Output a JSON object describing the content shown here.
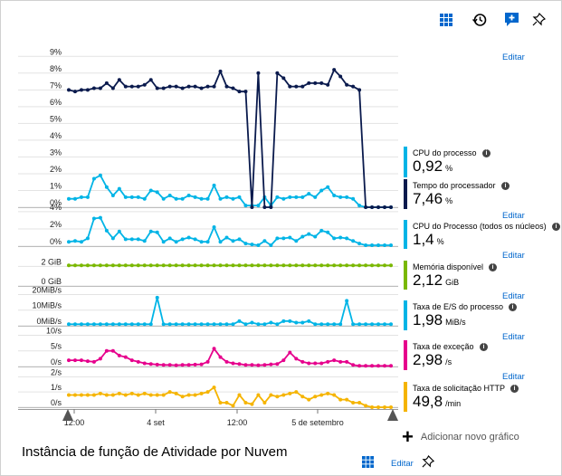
{
  "header": {
    "icons": [
      "grid-icon",
      "history-icon",
      "feedback-icon",
      "pin-icon"
    ]
  },
  "edit_label": "Editar",
  "panels": [
    {
      "name": "CPU do processo",
      "value": "0,92",
      "unit": "%",
      "color": "#00b4e6"
    },
    {
      "name": "Tempo do processador",
      "value": "7,46",
      "unit": "%",
      "color": "#0a1a4d"
    },
    {
      "name": "CPU do Processo (todos os núcleos)",
      "value": "1,4",
      "unit": "%",
      "color": "#00b4e6"
    },
    {
      "name": "Memória disponível",
      "value": "2,12",
      "unit": "GiB",
      "color": "#7ab800"
    },
    {
      "name": "Taxa de E/S do processo",
      "value": "1,98",
      "unit": "MiB/s",
      "color": "#00b4e6"
    },
    {
      "name": "Taxa de exceção",
      "value": "2,98",
      "unit": "/s",
      "color": "#e6008c"
    },
    {
      "name": "Taxa de solicitação HTTP",
      "value": "49,8",
      "unit": "/min",
      "color": "#f5b400"
    }
  ],
  "footer": {
    "title": "Instância de função de Atividade por Nuvem",
    "edit_label": "Editar",
    "add_chart_label": "Adicionar novo gráfico"
  },
  "chart_data": [
    {
      "type": "line",
      "title": "",
      "ytick_labels": [
        "0%",
        "1%",
        "2%",
        "3%",
        "4%",
        "5%",
        "6%",
        "7%",
        "8%",
        "9%"
      ],
      "ylim": [
        0,
        9.5
      ],
      "series": [
        {
          "name": "CPU do processo",
          "color": "#00b4e6",
          "values": [
            0.5,
            0.5,
            0.6,
            0.6,
            1.7,
            1.9,
            1.2,
            0.7,
            1.1,
            0.6,
            0.6,
            0.6,
            0.5,
            1.0,
            0.9,
            0.5,
            0.7,
            0.5,
            0.5,
            0.7,
            0.6,
            0.5,
            0.5,
            1.3,
            0.5,
            0.6,
            0.5,
            0.6,
            0.1,
            0.1,
            0.1,
            0.6,
            0.1,
            0.6,
            0.5,
            0.6,
            0.6,
            0.6,
            0.8,
            0.6,
            1.0,
            1.2,
            0.7,
            0.6,
            0.6,
            0.5,
            0.1,
            0.0,
            0.0,
            0.0,
            0.0,
            0.0
          ]
        },
        {
          "name": "Tempo do processador",
          "color": "#0a1a4d",
          "values": [
            7.0,
            6.9,
            7.0,
            7.0,
            7.1,
            7.1,
            7.4,
            7.1,
            7.6,
            7.2,
            7.2,
            7.2,
            7.3,
            7.6,
            7.1,
            7.1,
            7.2,
            7.2,
            7.1,
            7.2,
            7.2,
            7.1,
            7.2,
            7.2,
            8.1,
            7.2,
            7.1,
            6.9,
            6.9,
            0.0,
            8.0,
            0.0,
            0.0,
            8.0,
            7.7,
            7.2,
            7.2,
            7.2,
            7.4,
            7.4,
            7.4,
            7.3,
            8.2,
            7.8,
            7.3,
            7.2,
            7.0,
            0.0,
            0.0,
            0.0,
            0.0,
            0.0
          ]
        }
      ]
    },
    {
      "type": "line",
      "title": "",
      "ytick_labels": [
        "0%",
        "2%",
        "4%"
      ],
      "ylim": [
        0,
        4.2
      ],
      "series": [
        {
          "name": "CPU do Processo (todos os núcleos)",
          "color": "#00b4e6",
          "values": [
            0.5,
            0.6,
            0.5,
            0.9,
            3.2,
            3.3,
            1.8,
            0.9,
            1.7,
            0.8,
            0.8,
            0.8,
            0.6,
            1.7,
            1.6,
            0.5,
            0.9,
            0.5,
            0.8,
            1.0,
            0.8,
            0.5,
            0.5,
            2.2,
            0.5,
            1.0,
            0.6,
            0.8,
            0.3,
            0.2,
            0.1,
            0.6,
            0.1,
            0.9,
            0.9,
            1.0,
            0.6,
            1.1,
            1.4,
            1.1,
            1.8,
            1.6,
            0.9,
            1.0,
            0.9,
            0.6,
            0.3,
            0.1,
            0.1,
            0.1,
            0.1,
            0.1
          ]
        }
      ]
    },
    {
      "type": "line",
      "title": "",
      "ytick_labels": [
        "0 GiB",
        "2 GiB"
      ],
      "ylim": [
        0,
        2.4
      ],
      "series": [
        {
          "name": "Memória disponível",
          "color": "#7ab800",
          "values": [
            2.1,
            2.1,
            2.1,
            2.1,
            2.1,
            2.1,
            2.1,
            2.1,
            2.1,
            2.1,
            2.1,
            2.1,
            2.1,
            2.1,
            2.1,
            2.1,
            2.1,
            2.1,
            2.1,
            2.1,
            2.1,
            2.1,
            2.1,
            2.1,
            2.1,
            2.1,
            2.1,
            2.1,
            2.1,
            2.1,
            2.1,
            2.1,
            2.1,
            2.1,
            2.1,
            2.1,
            2.1,
            2.1,
            2.1,
            2.1,
            2.1,
            2.1,
            2.1,
            2.1,
            2.1,
            2.1,
            2.1,
            2.1,
            2.1,
            2.1,
            2.1,
            2.1
          ]
        }
      ]
    },
    {
      "type": "line",
      "title": "",
      "ytick_labels": [
        "0MiB/s",
        "10MiB/s",
        "20MiB/s"
      ],
      "ylim": [
        0,
        22
      ],
      "series": [
        {
          "name": "Taxa de E/S do processo",
          "color": "#00b4e6",
          "values": [
            1,
            1,
            1,
            1,
            1,
            1,
            1,
            1,
            1,
            1,
            1,
            1,
            1,
            1,
            18,
            1,
            1,
            1,
            1,
            1,
            1,
            1,
            1,
            1,
            1,
            1,
            1,
            3,
            1,
            2,
            1,
            1,
            2,
            1,
            3,
            3,
            2,
            2,
            3,
            1,
            1,
            1,
            1,
            1,
            16,
            1,
            1,
            1,
            1,
            1,
            1,
            1
          ]
        }
      ]
    },
    {
      "type": "line",
      "title": "",
      "ytick_labels": [
        "0/s",
        "5/s",
        "10/s"
      ],
      "ylim": [
        0,
        11
      ],
      "series": [
        {
          "name": "Taxa de exceção",
          "color": "#e6008c",
          "values": [
            2,
            2,
            2,
            1.7,
            1.5,
            2.5,
            5,
            5,
            3.5,
            3,
            2,
            1.5,
            1,
            0.8,
            0.6,
            0.5,
            0.5,
            0.4,
            0.5,
            0.5,
            0.6,
            0.7,
            1.5,
            5.7,
            3,
            1.5,
            1,
            0.8,
            0.5,
            0.5,
            0.4,
            0.5,
            0.7,
            0.8,
            2,
            4.5,
            2.5,
            1.5,
            1,
            1,
            1,
            1.5,
            2,
            1.5,
            1.5,
            0.5,
            0.2,
            0.2,
            0.2,
            0.2,
            0.2,
            0.2
          ]
        }
      ]
    },
    {
      "type": "line",
      "title": "",
      "ytick_labels": [
        "0/s",
        "1/s",
        "2/s"
      ],
      "ylim": [
        0,
        2.2
      ],
      "series": [
        {
          "name": "Taxa de solicitação HTTP",
          "color": "#f5b400",
          "values": [
            0.8,
            0.8,
            0.8,
            0.8,
            0.8,
            0.9,
            0.8,
            0.8,
            0.9,
            0.8,
            0.9,
            0.8,
            0.9,
            0.8,
            0.8,
            0.8,
            1.0,
            0.9,
            0.7,
            0.8,
            0.8,
            0.9,
            1.0,
            1.3,
            0.3,
            0.3,
            0.1,
            0.8,
            0.3,
            0.2,
            0.8,
            0.3,
            0.8,
            0.7,
            0.8,
            0.9,
            1.0,
            0.7,
            0.5,
            0.7,
            0.8,
            0.9,
            0.8,
            0.5,
            0.5,
            0.3,
            0.3,
            0.1,
            0.0,
            0.0,
            0.0,
            0.0
          ]
        }
      ]
    }
  ],
  "xaxis": {
    "tick_labels": [
      "12:00",
      "4 set",
      "12:00",
      "5 de setembro"
    ]
  }
}
